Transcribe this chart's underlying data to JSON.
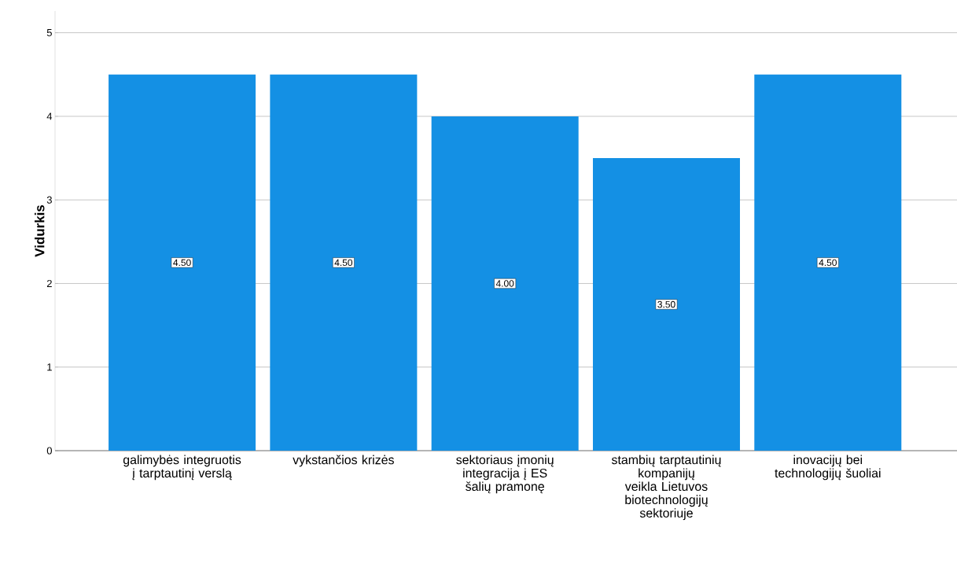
{
  "chart_data": {
    "type": "bar",
    "ylabel": "Vidurkis",
    "categories": [
      "galimybės integruotis į tarptautinį verslą",
      "vykstančios krizės",
      "sektoriaus įmonių integracija į ES šalių pramonę",
      "stambių tarptautinių kompanijų veikla Lietuvos biotechnologijų sektoriuje",
      "inovacijų bei technologijų šuoliai"
    ],
    "values": [
      4.5,
      4.5,
      4.0,
      3.5,
      4.5
    ],
    "value_labels": [
      "4.50",
      "4.50",
      "4.00",
      "3.50",
      "4.50"
    ],
    "color": "#1490e4",
    "ylim": [
      0,
      5.26
    ],
    "yticks": [
      0,
      1,
      2,
      3,
      4,
      5
    ],
    "grid": "y"
  }
}
